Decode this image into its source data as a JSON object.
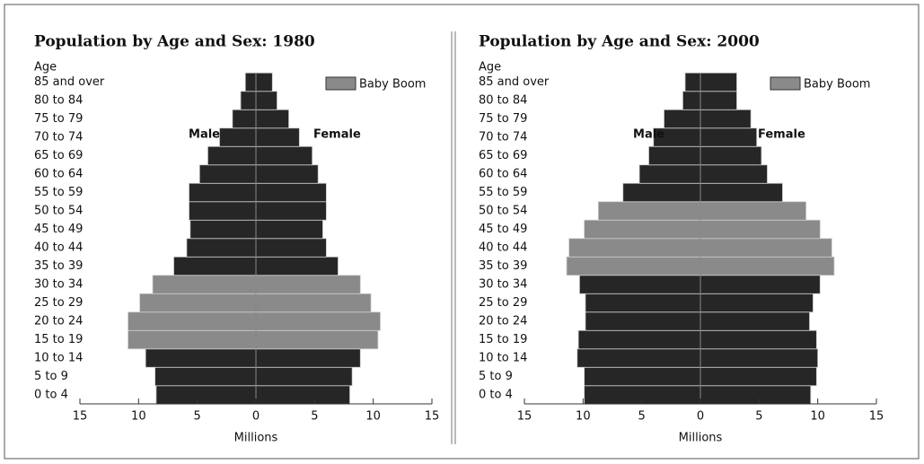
{
  "chart_data": [
    {
      "type": "pyramid",
      "title": "Population by Age and Sex:  1980",
      "y_label": "Age",
      "x_label": "Millions",
      "categories": [
        "0 to 4",
        "5 to 9",
        "10 to 14",
        "15 to 19",
        "20 to 24",
        "25 to 29",
        "30 to 34",
        "35 to 39",
        "40 to 44",
        "45 to 49",
        "50 to 54",
        "55 to 59",
        "60 to 64",
        "65 to 69",
        "70 to 74",
        "75 to 79",
        "80 to 84",
        "85 and over"
      ],
      "series": [
        {
          "name": "Male",
          "color": "#262626",
          "values": [
            8.5,
            8.6,
            9.4,
            10.9,
            10.9,
            9.9,
            8.8,
            7.0,
            5.9,
            5.6,
            5.7,
            5.7,
            4.8,
            4.1,
            3.1,
            2.0,
            1.3,
            0.9
          ]
        },
        {
          "name": "Female",
          "color": "#262626",
          "values": [
            8.0,
            8.2,
            8.9,
            10.4,
            10.6,
            9.8,
            8.9,
            7.0,
            6.0,
            5.7,
            6.0,
            6.0,
            5.3,
            4.8,
            3.7,
            2.8,
            1.8,
            1.4
          ]
        }
      ],
      "highlight_name": "Baby Boom",
      "highlight_color": "#8a8a8a",
      "highlight_categories": [
        "15 to 19",
        "20 to 24",
        "25 to 29",
        "30 to 34"
      ],
      "xlim": [
        -15,
        15
      ],
      "xticks": [
        {
          "value": -15,
          "label": "15"
        },
        {
          "value": -10,
          "label": "10"
        },
        {
          "value": -5,
          "label": "5"
        },
        0,
        5,
        10,
        15
      ]
    },
    {
      "type": "pyramid",
      "title": "Population by Age and Sex:  2000",
      "y_label": "Age",
      "x_label": "Millions",
      "categories": [
        "0 to 4",
        "5 to 9",
        "10 to 14",
        "15 to 19",
        "20 to 24",
        "25 to 29",
        "30 to 34",
        "35 to 39",
        "40 to 44",
        "45 to 49",
        "50 to 54",
        "55 to 59",
        "60 to 64",
        "65 to 69",
        "70 to 74",
        "75 to 79",
        "80 to 84",
        "85 and over"
      ],
      "series": [
        {
          "name": "Male",
          "color": "#262626",
          "values": [
            9.9,
            9.9,
            10.5,
            10.4,
            9.8,
            9.8,
            10.3,
            11.4,
            11.2,
            9.9,
            8.7,
            6.6,
            5.2,
            4.4,
            4.0,
            3.1,
            1.5,
            1.3
          ]
        },
        {
          "name": "Female",
          "color": "#262626",
          "values": [
            9.4,
            9.9,
            10.0,
            9.9,
            9.3,
            9.6,
            10.2,
            11.4,
            11.2,
            10.2,
            9.0,
            7.0,
            5.7,
            5.2,
            4.8,
            4.3,
            3.1,
            3.1
          ]
        }
      ],
      "highlight_name": "Baby Boom",
      "highlight_color": "#8a8a8a",
      "highlight_categories": [
        "35 to 39",
        "40 to 44",
        "45 to 49",
        "50 to 54"
      ],
      "xlim": [
        -15,
        15
      ],
      "xticks": [
        {
          "value": -15,
          "label": "15"
        },
        {
          "value": -10,
          "label": "10"
        },
        {
          "value": -5,
          "label": "5"
        },
        0,
        5,
        10,
        15
      ]
    }
  ]
}
